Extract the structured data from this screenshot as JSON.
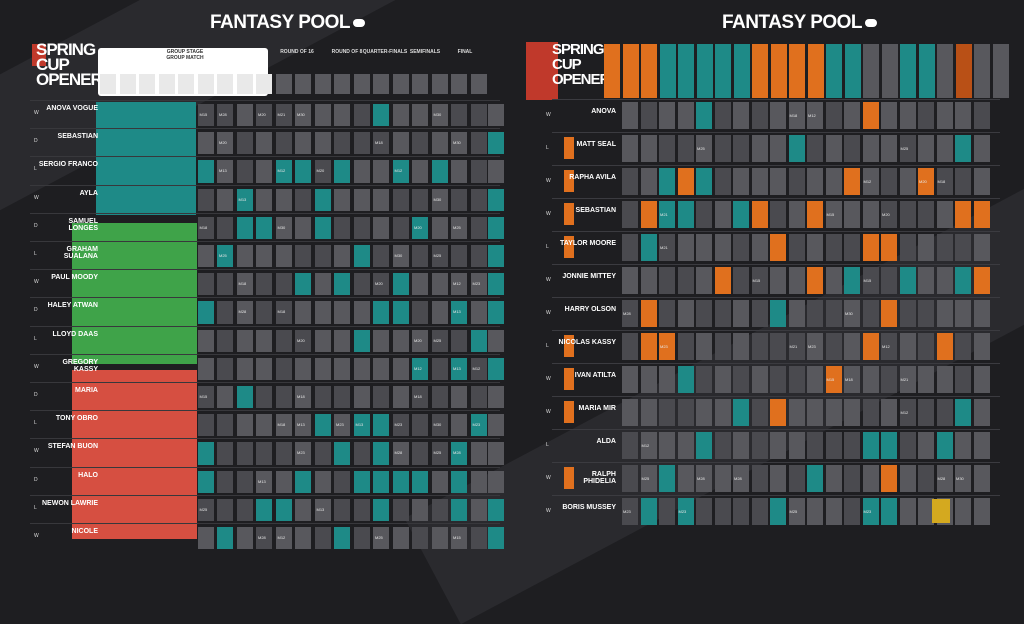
{
  "panels": [
    {
      "id": "left",
      "title": "FANTASY POOL",
      "logo_lines": [
        "SPRING",
        "CUP",
        "OPENER"
      ],
      "stage_headers": [
        "GROUP STAGE",
        "ROUND OF 16",
        "ROUND OF 8",
        "QUARTER-FINALS",
        "SEMIFINALS",
        "FINAL"
      ],
      "group_heading": "GROUP MATCH",
      "players": [
        "ANOVA VOGUE",
        "SEBASTIAN",
        "SERGIO FRANCO",
        "AYLA",
        "SAMUEL LONGES",
        "GRAHAM SUALANA",
        "PAUL MOODY",
        "HALEY ATWAN",
        "LLOYD DAAS",
        "GREGORY KASSY",
        "MARIA",
        "TONY OBRO",
        "STEFAN BUON",
        "HALO",
        "NEWON LAWRIE",
        "NICOLE"
      ],
      "row_tags": [
        "W",
        "D",
        "L"
      ],
      "cell_codes": [
        "M12",
        "M13",
        "M15",
        "M18",
        "M20",
        "M21",
        "M23",
        "M25",
        "M28",
        "M30"
      ]
    },
    {
      "id": "right",
      "title": "FANTASY POOL",
      "logo_lines": [
        "SPRING",
        "CUP",
        "OPENER"
      ],
      "players": [
        "ANOVA",
        "MATT SEAL",
        "RAPHA AVILA",
        "SEBASTIAN",
        "TAYLOR MOORE",
        "JONNIE MITTEY",
        "HARRY OLSON",
        "NICOLAS KASSY",
        "IVAN ATILTA",
        "MARIA MIR",
        "ALDA",
        "RALPH PHIDELIA",
        "BORIS MUSSEY"
      ],
      "row_tags": [
        "W",
        "L",
        "W"
      ],
      "cell_codes": [
        "M12",
        "M15",
        "M18",
        "M20",
        "M21",
        "M23",
        "M25",
        "M28",
        "M30"
      ]
    }
  ],
  "colors": {
    "background": "#1e1e21",
    "stripe": "#2a2a2e",
    "cell_grey": "#58585d",
    "cell_grey_dark": "#4a4a4f",
    "teal": "#1e8a87",
    "green": "#3fa349",
    "red": "#d64f41",
    "orange": "#e0701e",
    "orange_dark": "#b95016",
    "yellow": "#d4a91f",
    "white": "#ffffff"
  }
}
